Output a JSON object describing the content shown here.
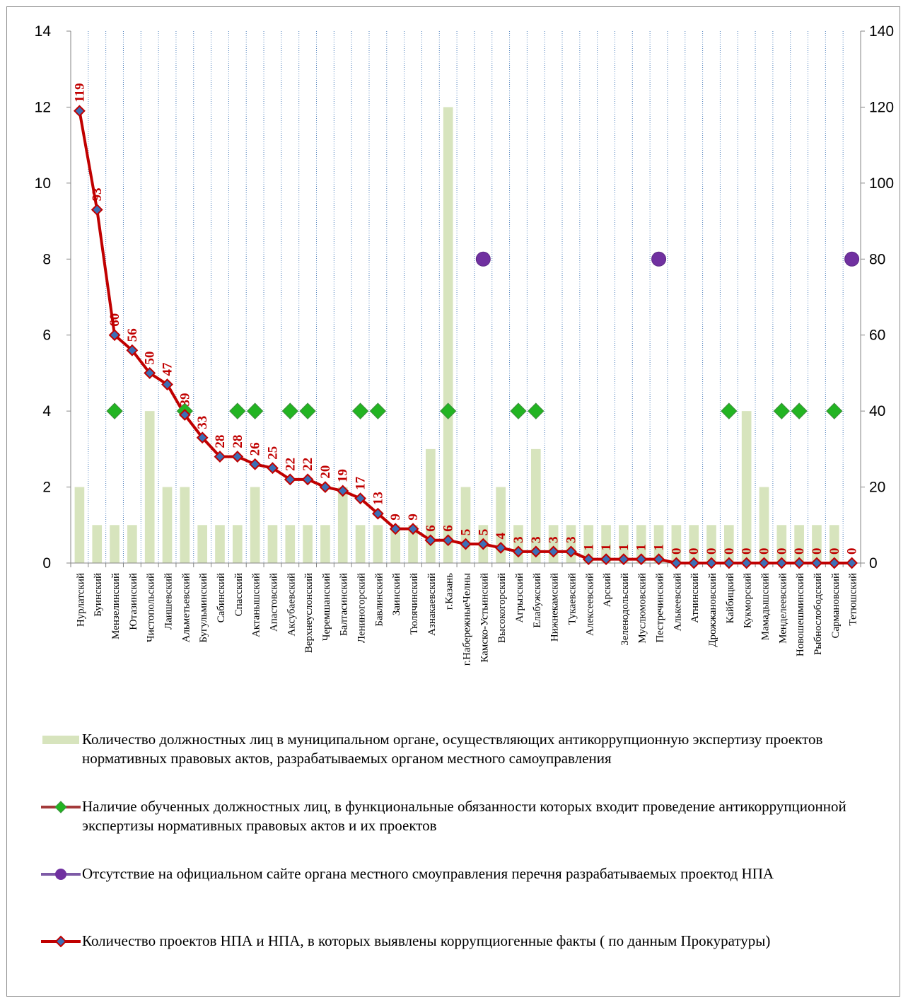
{
  "chart_data": {
    "type": "bar+line",
    "categories": [
      "Нурлатский",
      "Буинский",
      "Мензелинский",
      "Ютазинский",
      "Чистопольский",
      "Лаишевский",
      "Альметьевский",
      "Бугульминский",
      "Сабинский",
      "Спасский",
      "Актанышский",
      "Апастовский",
      "Аксубаевский",
      "Верхнеуслонский",
      "Черемшанский",
      "Балтасинский",
      "Лениногорский",
      "Бавлинский",
      "Заинский",
      "Тюлячинский",
      "Азнакаевский",
      "г.Казань",
      "г.НабережныеЧелны",
      "Камско-Устьинский",
      "Высокогорский",
      "Агрызский",
      "Елабужский",
      "Нижнекамский",
      "Тукаевский",
      "Алексеевский",
      "Арский",
      "Зеленодольский",
      "Муслюмовский",
      "Пестречинский",
      "Алькеевский",
      "Атнинский",
      "Дрожжановский",
      "Кайбицкий",
      "Кукморский",
      "Мамадышский",
      "Менделеевский",
      "Новошешминский",
      "Рыбнослободский",
      "Сармановский",
      "Тетюшский"
    ],
    "left_axis": {
      "ylim": [
        0,
        14
      ],
      "ticks": [
        "0",
        "2",
        "4",
        "6",
        "8",
        "10",
        "12",
        "14"
      ]
    },
    "right_axis": {
      "ylim": [
        0,
        140
      ],
      "ticks": [
        "0",
        "20",
        "40",
        "60",
        "80",
        "100",
        "120",
        "140"
      ]
    },
    "series": [
      {
        "name": "Количество должностных лиц в муниципальном органе, осуществляющих антикоррупционную экспертизу проектов нормативных правовых актов, разрабатываемых органом местного самоуправления",
        "kind": "bar",
        "axis": "left",
        "color": "#d7e4bd",
        "values": [
          2,
          1,
          1,
          1,
          4,
          2,
          2,
          1,
          1,
          1,
          2,
          1,
          1,
          1,
          1,
          2,
          1,
          1,
          1,
          1,
          3,
          12,
          2,
          1,
          2,
          1,
          3,
          1,
          1,
          1,
          1,
          1,
          1,
          1,
          1,
          1,
          1,
          1,
          4,
          2,
          1,
          1,
          1,
          1,
          0
        ]
      },
      {
        "name": "Наличие обученных  должностных лиц, в функциональные обязанности которых входит проведение антикоррупционной экспертизы нормативных правовых актов и их проектов",
        "kind": "marker",
        "axis": "left",
        "marker": "diamond",
        "color": "#22b422",
        "line_color": "#a33a3a",
        "values": [
          null,
          null,
          4,
          null,
          null,
          null,
          4,
          null,
          null,
          4,
          4,
          null,
          4,
          4,
          null,
          null,
          4,
          4,
          null,
          null,
          null,
          4,
          null,
          null,
          null,
          4,
          4,
          null,
          null,
          null,
          null,
          null,
          null,
          null,
          null,
          null,
          null,
          4,
          null,
          null,
          4,
          4,
          null,
          4,
          null
        ]
      },
      {
        "name": "Отсутствие на официальном сайте органа местного смоуправления перечня разрабатываемых проектод НПА",
        "kind": "marker",
        "axis": "left",
        "marker": "circle",
        "color": "#7030a0",
        "values": [
          null,
          null,
          null,
          null,
          null,
          null,
          null,
          null,
          null,
          null,
          null,
          null,
          null,
          null,
          null,
          null,
          null,
          null,
          null,
          null,
          null,
          null,
          null,
          8,
          null,
          null,
          null,
          null,
          null,
          null,
          null,
          null,
          null,
          8,
          null,
          null,
          null,
          null,
          null,
          null,
          null,
          null,
          null,
          null,
          8
        ]
      },
      {
        "name": "Количество проектов НПА и НПА, в которых выявлены коррупциогенные факты ( по данным Прокуратуры)",
        "kind": "line",
        "axis": "right",
        "marker": "diamond",
        "color": "#c00000",
        "marker_color": "#3b6fb6",
        "values": [
          119,
          93,
          60,
          56,
          50,
          47,
          39,
          33,
          28,
          28,
          26,
          25,
          22,
          22,
          20,
          19,
          17,
          13,
          9,
          9,
          6,
          6,
          5,
          5,
          4,
          3,
          3,
          3,
          3,
          1,
          1,
          1,
          1,
          1,
          0,
          0,
          0,
          0,
          0,
          0,
          0,
          0,
          0,
          0,
          0
        ],
        "data_labels": [
          "119",
          "93",
          "60",
          "56",
          "50",
          "47",
          "39",
          "33",
          "28",
          "28",
          "26",
          "25",
          "22",
          "22",
          "20",
          "19",
          "17",
          "13",
          "9",
          "9",
          "6",
          "6",
          "5",
          "5",
          "4",
          "3",
          "3",
          "3",
          "3",
          "1",
          "1",
          "1",
          "1",
          "1",
          "0",
          "0",
          "0",
          "0",
          "0",
          "0",
          "0",
          "0",
          "0",
          "0",
          "0"
        ]
      }
    ],
    "grid": "vertical dotted",
    "legend_position": "bottom"
  }
}
